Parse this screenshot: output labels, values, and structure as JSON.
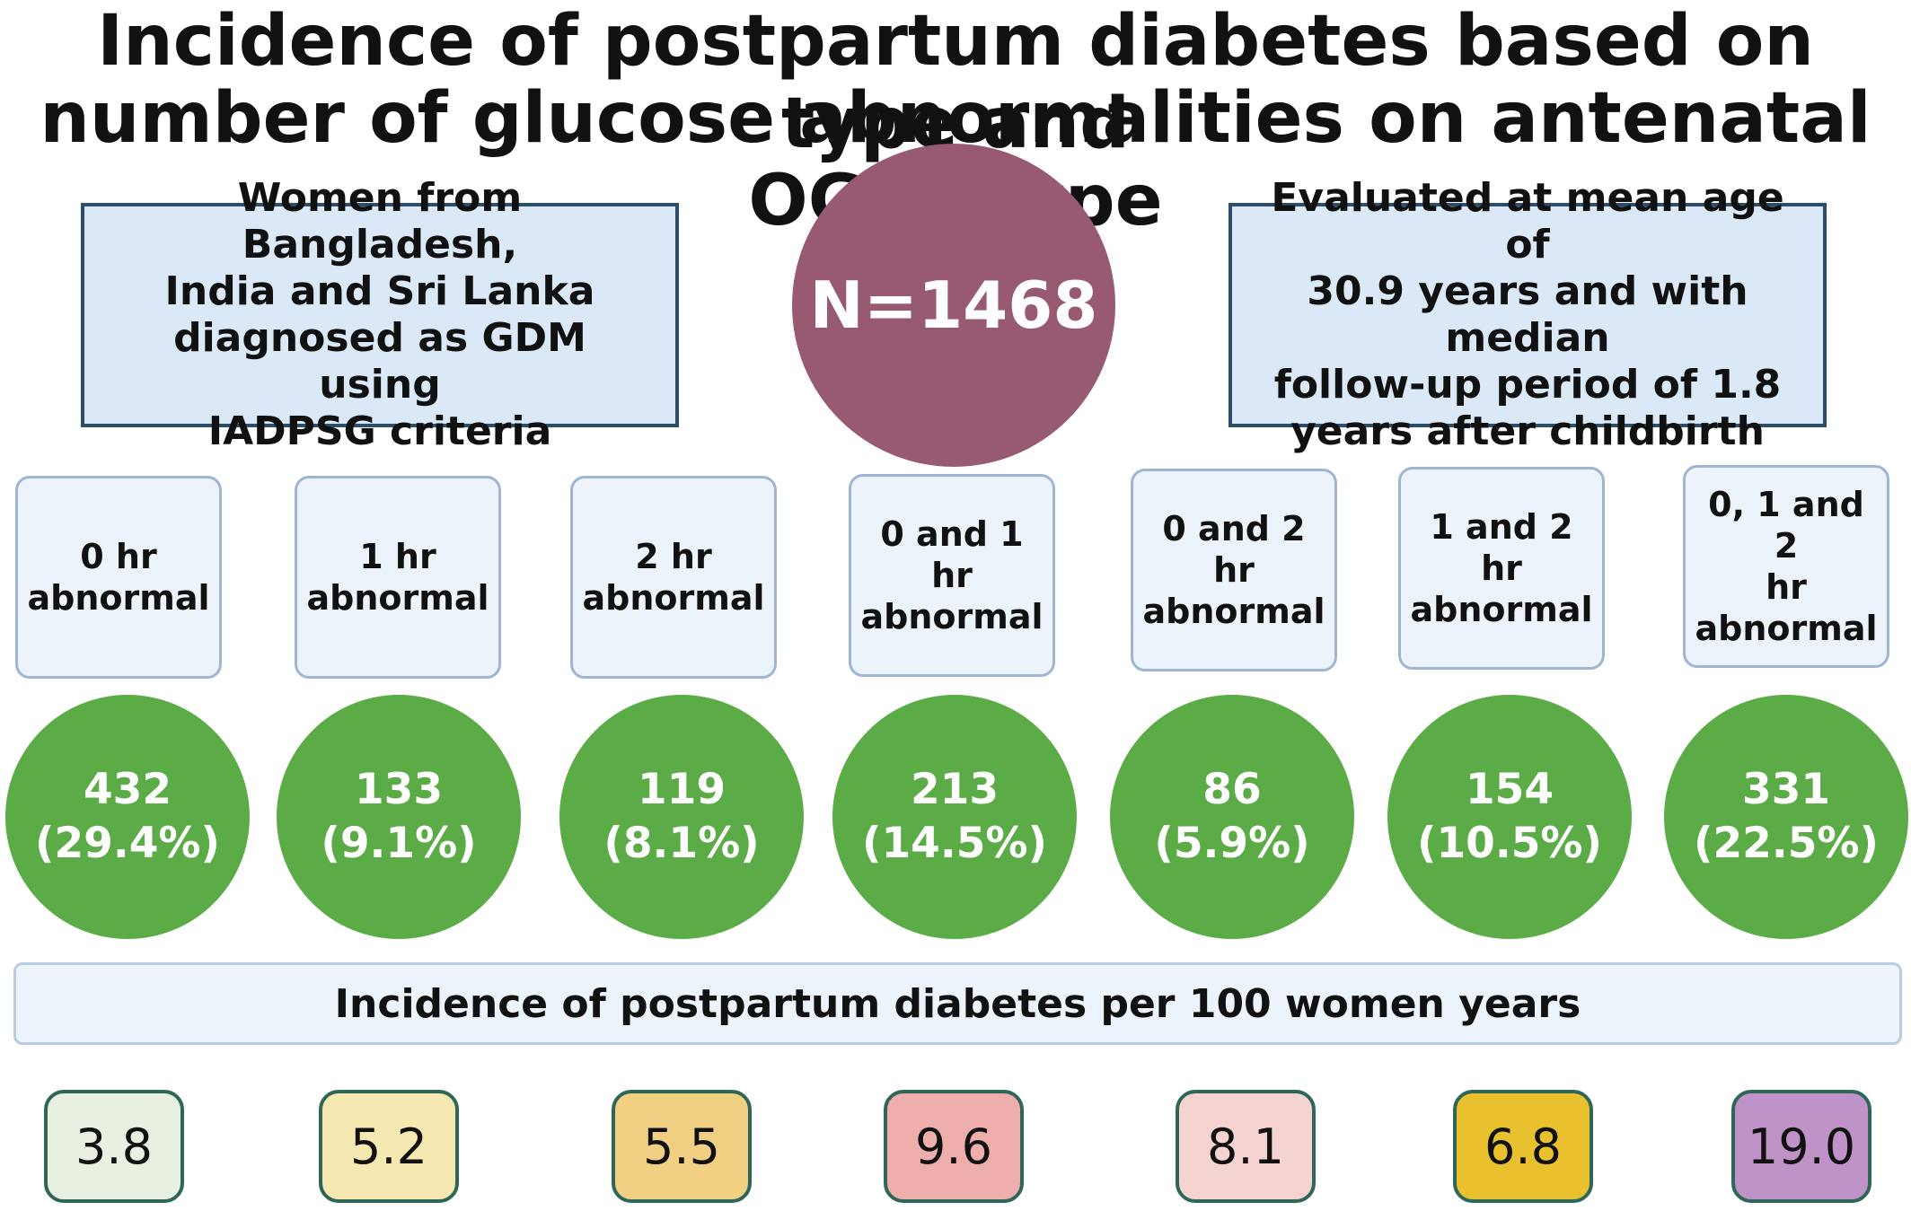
{
  "title": {
    "line1": "Incidence of postpartum diabetes based on type and",
    "line2": "number of glucose abnormalities on antenatal OGTT type"
  },
  "left_info": {
    "line1": "Women from Bangladesh,",
    "line2": "India and Sri Lanka",
    "line3": "diagnosed as GDM using",
    "line4": "IADPSG criteria"
  },
  "right_info": {
    "line1": "Evaluated at mean age of",
    "line2": "30.9 years and with median",
    "line3": "follow-up period of 1.8",
    "line4": "years after childbirth"
  },
  "total": "N=1468",
  "categories": [
    {
      "line1": "0 hr",
      "line2": "abnormal",
      "count": "432",
      "percent": "(29.4%)",
      "incidence": "3.8",
      "color": "#e7f0e1"
    },
    {
      "line1": "1 hr",
      "line2": "abnormal",
      "count": "133",
      "percent": "(9.1%)",
      "incidence": "5.2",
      "color": "#f6e8b1"
    },
    {
      "line1": "2 hr",
      "line2": "abnormal",
      "count": "119",
      "percent": "(8.1%)",
      "incidence": "5.5",
      "color": "#f1d083"
    },
    {
      "line1": "0 and 1 hr",
      "line2": "abnormal",
      "count": "213",
      "percent": "(14.5%)",
      "incidence": "9.6",
      "color": "#eeaeab"
    },
    {
      "line1": "0 and 2 hr",
      "line2": "abnormal",
      "count": "86",
      "percent": "(5.9%)",
      "incidence": "8.1",
      "color": "#f5d3d0"
    },
    {
      "line1": "1 and 2 hr",
      "line2": "abnormal",
      "count": "154",
      "percent": "(10.5%)",
      "incidence": "6.8",
      "color": "#e9c12e"
    },
    {
      "line1": "0, 1 and 2",
      "line2": "hr abnormal",
      "count": "331",
      "percent": "(22.5%)",
      "incidence": "19.0",
      "color": "#bf93c8"
    }
  ],
  "banner": "Incidence of postpartum diabetes per 100 women years"
}
